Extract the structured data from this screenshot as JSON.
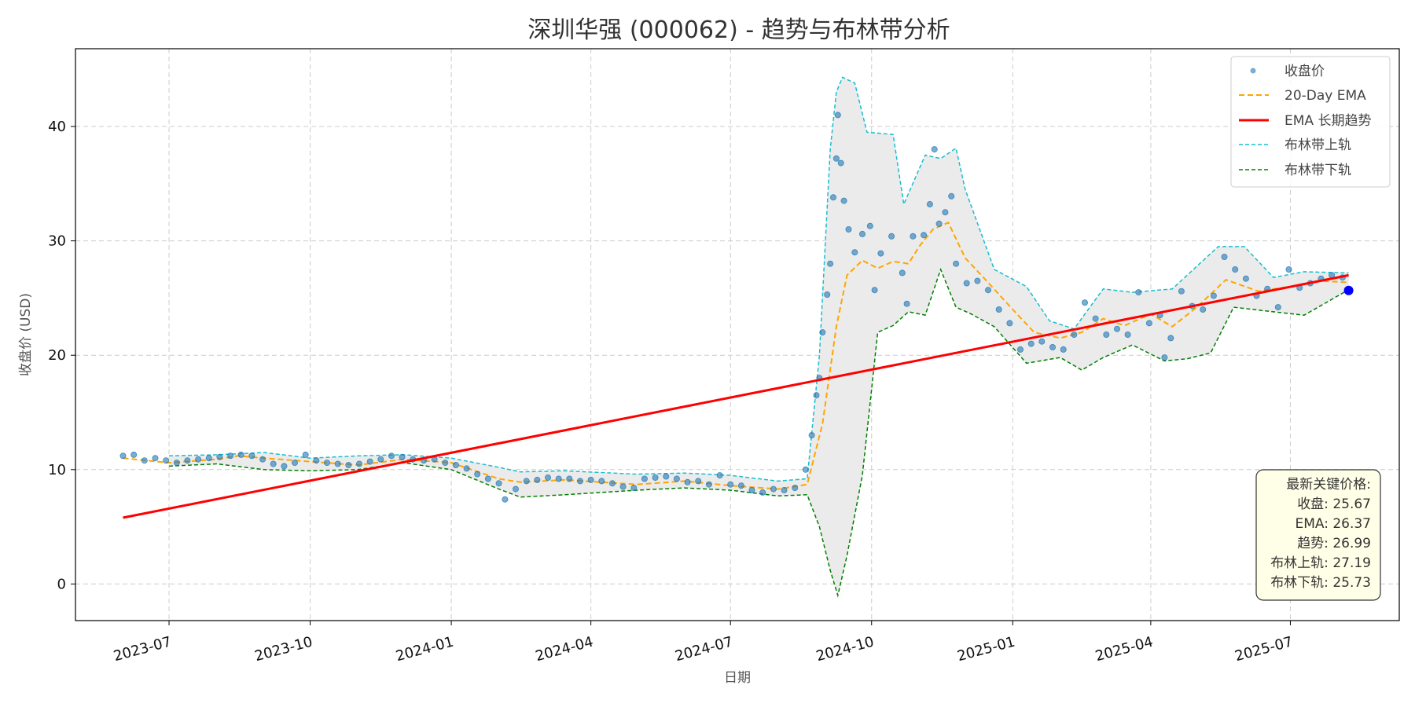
{
  "chart_data": {
    "type": "line",
    "title": "深圳华强 (000062) - 趋势与布林带分析",
    "xlabel": "日期",
    "ylabel": "收盘价 (USD)",
    "x_range": [
      "2023-05-01",
      "2025-09-10"
    ],
    "ylim": [
      -3.2,
      46.8
    ],
    "y_ticks": [
      0,
      10,
      20,
      30,
      40
    ],
    "x_ticks": [
      "2023-07",
      "2023-10",
      "2024-01",
      "2024-04",
      "2024-07",
      "2024-10",
      "2025-01",
      "2025-04",
      "2025-07"
    ],
    "grid": true,
    "legend_position": "top-right",
    "colors": {
      "price": "#1f77b4",
      "ema": "#ffa500",
      "trend": "#ff0000",
      "upper": "#17becf",
      "lower": "#008000",
      "band_fill": "#ebebeb",
      "latest_point": "#0000ff"
    },
    "legend": [
      {
        "key": "price",
        "label": "收盘价"
      },
      {
        "key": "ema",
        "label": "20-Day EMA"
      },
      {
        "key": "trend",
        "label": "EMA 长期趋势"
      },
      {
        "key": "upper",
        "label": "布林带上轨"
      },
      {
        "key": "lower",
        "label": "布林带下轨"
      }
    ],
    "series": [
      {
        "name": "收盘价",
        "type": "scatter",
        "points": [
          [
            "2023-06-01",
            11.2
          ],
          [
            "2023-06-08",
            11.3
          ],
          [
            "2023-06-15",
            10.8
          ],
          [
            "2023-06-22",
            11.0
          ],
          [
            "2023-06-29",
            10.8
          ],
          [
            "2023-07-06",
            10.6
          ],
          [
            "2023-07-13",
            10.8
          ],
          [
            "2023-07-20",
            10.9
          ],
          [
            "2023-07-27",
            11.0
          ],
          [
            "2023-08-03",
            11.1
          ],
          [
            "2023-08-10",
            11.2
          ],
          [
            "2023-08-17",
            11.3
          ],
          [
            "2023-08-24",
            11.2
          ],
          [
            "2023-08-31",
            10.9
          ],
          [
            "2023-09-07",
            10.5
          ],
          [
            "2023-09-14",
            10.3
          ],
          [
            "2023-09-21",
            10.6
          ],
          [
            "2023-09-28",
            11.3
          ],
          [
            "2023-10-05",
            10.8
          ],
          [
            "2023-10-12",
            10.6
          ],
          [
            "2023-10-19",
            10.5
          ],
          [
            "2023-10-26",
            10.4
          ],
          [
            "2023-11-02",
            10.5
          ],
          [
            "2023-11-09",
            10.7
          ],
          [
            "2023-11-16",
            10.9
          ],
          [
            "2023-11-23",
            11.2
          ],
          [
            "2023-11-30",
            11.1
          ],
          [
            "2023-12-07",
            10.9
          ],
          [
            "2023-12-14",
            10.8
          ],
          [
            "2023-12-21",
            10.9
          ],
          [
            "2023-12-28",
            10.6
          ],
          [
            "2024-01-04",
            10.4
          ],
          [
            "2024-01-11",
            10.1
          ],
          [
            "2024-01-18",
            9.6
          ],
          [
            "2024-01-25",
            9.2
          ],
          [
            "2024-02-01",
            8.8
          ],
          [
            "2024-02-05",
            7.4
          ],
          [
            "2024-02-12",
            8.3
          ],
          [
            "2024-02-19",
            9.0
          ],
          [
            "2024-02-26",
            9.1
          ],
          [
            "2024-03-04",
            9.3
          ],
          [
            "2024-03-11",
            9.2
          ],
          [
            "2024-03-18",
            9.2
          ],
          [
            "2024-03-25",
            9.0
          ],
          [
            "2024-04-01",
            9.1
          ],
          [
            "2024-04-08",
            9.0
          ],
          [
            "2024-04-15",
            8.8
          ],
          [
            "2024-04-22",
            8.5
          ],
          [
            "2024-04-29",
            8.4
          ],
          [
            "2024-05-06",
            9.2
          ],
          [
            "2024-05-13",
            9.3
          ],
          [
            "2024-05-20",
            9.4
          ],
          [
            "2024-05-27",
            9.2
          ],
          [
            "2024-06-03",
            8.9
          ],
          [
            "2024-06-10",
            9.0
          ],
          [
            "2024-06-17",
            8.7
          ],
          [
            "2024-06-24",
            9.5
          ],
          [
            "2024-07-01",
            8.7
          ],
          [
            "2024-07-08",
            8.6
          ],
          [
            "2024-07-15",
            8.2
          ],
          [
            "2024-07-22",
            8.0
          ],
          [
            "2024-07-29",
            8.3
          ],
          [
            "2024-08-05",
            8.2
          ],
          [
            "2024-08-12",
            8.4
          ],
          [
            "2024-08-19",
            10.0
          ],
          [
            "2024-08-23",
            13.0
          ],
          [
            "2024-08-26",
            16.5
          ],
          [
            "2024-08-28",
            18.0
          ],
          [
            "2024-08-30",
            22.0
          ],
          [
            "2024-09-02",
            25.3
          ],
          [
            "2024-09-04",
            28.0
          ],
          [
            "2024-09-06",
            33.8
          ],
          [
            "2024-09-08",
            37.2
          ],
          [
            "2024-09-09",
            41.0
          ],
          [
            "2024-09-11",
            36.8
          ],
          [
            "2024-09-13",
            33.5
          ],
          [
            "2024-09-16",
            31.0
          ],
          [
            "2024-09-20",
            29.0
          ],
          [
            "2024-09-25",
            30.6
          ],
          [
            "2024-09-30",
            31.3
          ],
          [
            "2024-10-03",
            25.7
          ],
          [
            "2024-10-07",
            28.9
          ],
          [
            "2024-10-14",
            30.4
          ],
          [
            "2024-10-21",
            27.2
          ],
          [
            "2024-10-24",
            24.5
          ],
          [
            "2024-10-28",
            30.4
          ],
          [
            "2024-11-04",
            30.5
          ],
          [
            "2024-11-08",
            33.2
          ],
          [
            "2024-11-11",
            38.0
          ],
          [
            "2024-11-14",
            31.5
          ],
          [
            "2024-11-18",
            32.5
          ],
          [
            "2024-11-22",
            33.9
          ],
          [
            "2024-11-25",
            28.0
          ],
          [
            "2024-12-02",
            26.3
          ],
          [
            "2024-12-09",
            26.5
          ],
          [
            "2024-12-16",
            25.7
          ],
          [
            "2024-12-23",
            24.0
          ],
          [
            "2024-12-30",
            22.8
          ],
          [
            "2025-01-06",
            20.5
          ],
          [
            "2025-01-13",
            21.0
          ],
          [
            "2025-01-20",
            21.2
          ],
          [
            "2025-01-27",
            20.7
          ],
          [
            "2025-02-03",
            20.5
          ],
          [
            "2025-02-10",
            21.8
          ],
          [
            "2025-02-17",
            24.6
          ],
          [
            "2025-02-24",
            23.2
          ],
          [
            "2025-03-03",
            21.8
          ],
          [
            "2025-03-10",
            22.3
          ],
          [
            "2025-03-17",
            21.8
          ],
          [
            "2025-03-24",
            25.5
          ],
          [
            "2025-03-31",
            22.8
          ],
          [
            "2025-04-07",
            23.5
          ],
          [
            "2025-04-10",
            19.8
          ],
          [
            "2025-04-14",
            21.5
          ],
          [
            "2025-04-21",
            25.6
          ],
          [
            "2025-04-28",
            24.3
          ],
          [
            "2025-05-05",
            24.0
          ],
          [
            "2025-05-12",
            25.2
          ],
          [
            "2025-05-19",
            28.6
          ],
          [
            "2025-05-26",
            27.5
          ],
          [
            "2025-06-02",
            26.7
          ],
          [
            "2025-06-09",
            25.2
          ],
          [
            "2025-06-16",
            25.8
          ],
          [
            "2025-06-23",
            24.2
          ],
          [
            "2025-06-30",
            27.5
          ],
          [
            "2025-07-07",
            25.9
          ],
          [
            "2025-07-14",
            26.3
          ],
          [
            "2025-07-21",
            26.7
          ],
          [
            "2025-07-28",
            27.0
          ],
          [
            "2025-08-04",
            26.8
          ],
          [
            "2025-08-08",
            25.67
          ]
        ]
      },
      {
        "name": "20-Day EMA",
        "type": "line",
        "points": [
          [
            "2023-06-01",
            11.0
          ],
          [
            "2023-07-01",
            10.6
          ],
          [
            "2023-08-01",
            10.9
          ],
          [
            "2023-08-15",
            11.2
          ],
          [
            "2023-09-01",
            11.0
          ],
          [
            "2023-10-01",
            10.7
          ],
          [
            "2023-11-01",
            10.4
          ],
          [
            "2023-12-01",
            10.9
          ],
          [
            "2024-01-01",
            10.6
          ],
          [
            "2024-02-01",
            9.2
          ],
          [
            "2024-02-15",
            8.9
          ],
          [
            "2024-03-15",
            9.1
          ],
          [
            "2024-05-01",
            8.7
          ],
          [
            "2024-06-01",
            9.0
          ],
          [
            "2024-07-01",
            8.6
          ],
          [
            "2024-08-01",
            8.3
          ],
          [
            "2024-08-20",
            8.7
          ],
          [
            "2024-08-30",
            14.0
          ],
          [
            "2024-09-08",
            22.5
          ],
          [
            "2024-09-15",
            27.0
          ],
          [
            "2024-09-25",
            28.3
          ],
          [
            "2024-10-05",
            27.6
          ],
          [
            "2024-10-15",
            28.2
          ],
          [
            "2024-10-25",
            28.0
          ],
          [
            "2024-11-01",
            29.5
          ],
          [
            "2024-11-10",
            31.0
          ],
          [
            "2024-11-20",
            31.6
          ],
          [
            "2024-12-01",
            28.5
          ],
          [
            "2024-12-15",
            26.5
          ],
          [
            "2025-01-01",
            24.0
          ],
          [
            "2025-01-15",
            22.0
          ],
          [
            "2025-02-01",
            21.5
          ],
          [
            "2025-02-15",
            22.0
          ],
          [
            "2025-03-01",
            23.2
          ],
          [
            "2025-03-15",
            22.6
          ],
          [
            "2025-04-01",
            23.6
          ],
          [
            "2025-04-15",
            22.5
          ],
          [
            "2025-05-01",
            24.2
          ],
          [
            "2025-05-20",
            26.6
          ],
          [
            "2025-06-10",
            25.6
          ],
          [
            "2025-07-01",
            26.0
          ],
          [
            "2025-07-20",
            26.5
          ],
          [
            "2025-08-08",
            26.37
          ]
        ]
      },
      {
        "name": "EMA 长期趋势",
        "type": "line",
        "points": [
          [
            "2023-06-01",
            5.8
          ],
          [
            "2025-08-08",
            26.99
          ]
        ]
      },
      {
        "name": "布林带上轨",
        "type": "line",
        "points": [
          [
            "2023-07-01",
            11.2
          ],
          [
            "2023-08-01",
            11.3
          ],
          [
            "2023-09-01",
            11.5
          ],
          [
            "2023-10-01",
            11.0
          ],
          [
            "2023-11-01",
            11.2
          ],
          [
            "2023-12-01",
            11.3
          ],
          [
            "2024-01-01",
            11.0
          ],
          [
            "2024-02-01",
            10.2
          ],
          [
            "2024-02-15",
            9.8
          ],
          [
            "2024-03-15",
            9.9
          ],
          [
            "2024-05-01",
            9.6
          ],
          [
            "2024-06-01",
            9.7
          ],
          [
            "2024-07-01",
            9.5
          ],
          [
            "2024-08-01",
            9.0
          ],
          [
            "2024-08-20",
            9.2
          ],
          [
            "2024-08-28",
            20.0
          ],
          [
            "2024-09-04",
            38.0
          ],
          [
            "2024-09-08",
            43.0
          ],
          [
            "2024-09-12",
            44.3
          ],
          [
            "2024-09-20",
            43.8
          ],
          [
            "2024-09-28",
            39.5
          ],
          [
            "2024-10-15",
            39.3
          ],
          [
            "2024-10-22",
            33.2
          ],
          [
            "2024-11-05",
            37.5
          ],
          [
            "2024-11-15",
            37.2
          ],
          [
            "2024-11-25",
            38.1
          ],
          [
            "2024-12-01",
            34.5
          ],
          [
            "2024-12-20",
            27.5
          ],
          [
            "2025-01-10",
            26.0
          ],
          [
            "2025-01-25",
            23.0
          ],
          [
            "2025-02-10",
            22.3
          ],
          [
            "2025-03-01",
            25.8
          ],
          [
            "2025-03-20",
            25.5
          ],
          [
            "2025-04-15",
            25.8
          ],
          [
            "2025-05-15",
            29.5
          ],
          [
            "2025-06-01",
            29.5
          ],
          [
            "2025-06-20",
            26.8
          ],
          [
            "2025-07-10",
            27.3
          ],
          [
            "2025-08-08",
            27.19
          ]
        ]
      },
      {
        "name": "布林带下轨",
        "type": "line",
        "points": [
          [
            "2023-07-01",
            10.3
          ],
          [
            "2023-08-01",
            10.5
          ],
          [
            "2023-09-01",
            10.0
          ],
          [
            "2023-10-01",
            9.9
          ],
          [
            "2023-11-01",
            10.0
          ],
          [
            "2023-12-01",
            10.6
          ],
          [
            "2024-01-01",
            10.0
          ],
          [
            "2024-02-01",
            8.3
          ],
          [
            "2024-02-15",
            7.6
          ],
          [
            "2024-03-15",
            7.8
          ],
          [
            "2024-05-01",
            8.2
          ],
          [
            "2024-06-01",
            8.4
          ],
          [
            "2024-07-01",
            8.2
          ],
          [
            "2024-08-01",
            7.7
          ],
          [
            "2024-08-20",
            7.8
          ],
          [
            "2024-08-28",
            5.0
          ],
          [
            "2024-09-04",
            1.2
          ],
          [
            "2024-09-09",
            -1.0
          ],
          [
            "2024-09-15",
            2.5
          ],
          [
            "2024-09-25",
            9.5
          ],
          [
            "2024-10-05",
            22.0
          ],
          [
            "2024-10-15",
            22.6
          ],
          [
            "2024-10-25",
            23.8
          ],
          [
            "2024-11-05",
            23.5
          ],
          [
            "2024-11-15",
            27.5
          ],
          [
            "2024-11-25",
            24.2
          ],
          [
            "2024-12-05",
            23.6
          ],
          [
            "2024-12-20",
            22.5
          ],
          [
            "2025-01-10",
            19.3
          ],
          [
            "2025-02-01",
            19.8
          ],
          [
            "2025-02-15",
            18.7
          ],
          [
            "2025-03-01",
            19.8
          ],
          [
            "2025-03-20",
            20.9
          ],
          [
            "2025-04-10",
            19.5
          ],
          [
            "2025-04-25",
            19.7
          ],
          [
            "2025-05-10",
            20.2
          ],
          [
            "2025-05-25",
            24.2
          ],
          [
            "2025-06-20",
            23.8
          ],
          [
            "2025-07-10",
            23.5
          ],
          [
            "2025-08-08",
            25.73
          ]
        ]
      }
    ],
    "latest": {
      "date": "2025-08-08",
      "value": 25.67
    },
    "info_box": {
      "title": "最新关键价格:",
      "lines": [
        "收盘: 25.67",
        "EMA: 26.37",
        "趋势: 26.99",
        "布林上轨: 27.19",
        "布林下轨: 25.73"
      ]
    }
  }
}
